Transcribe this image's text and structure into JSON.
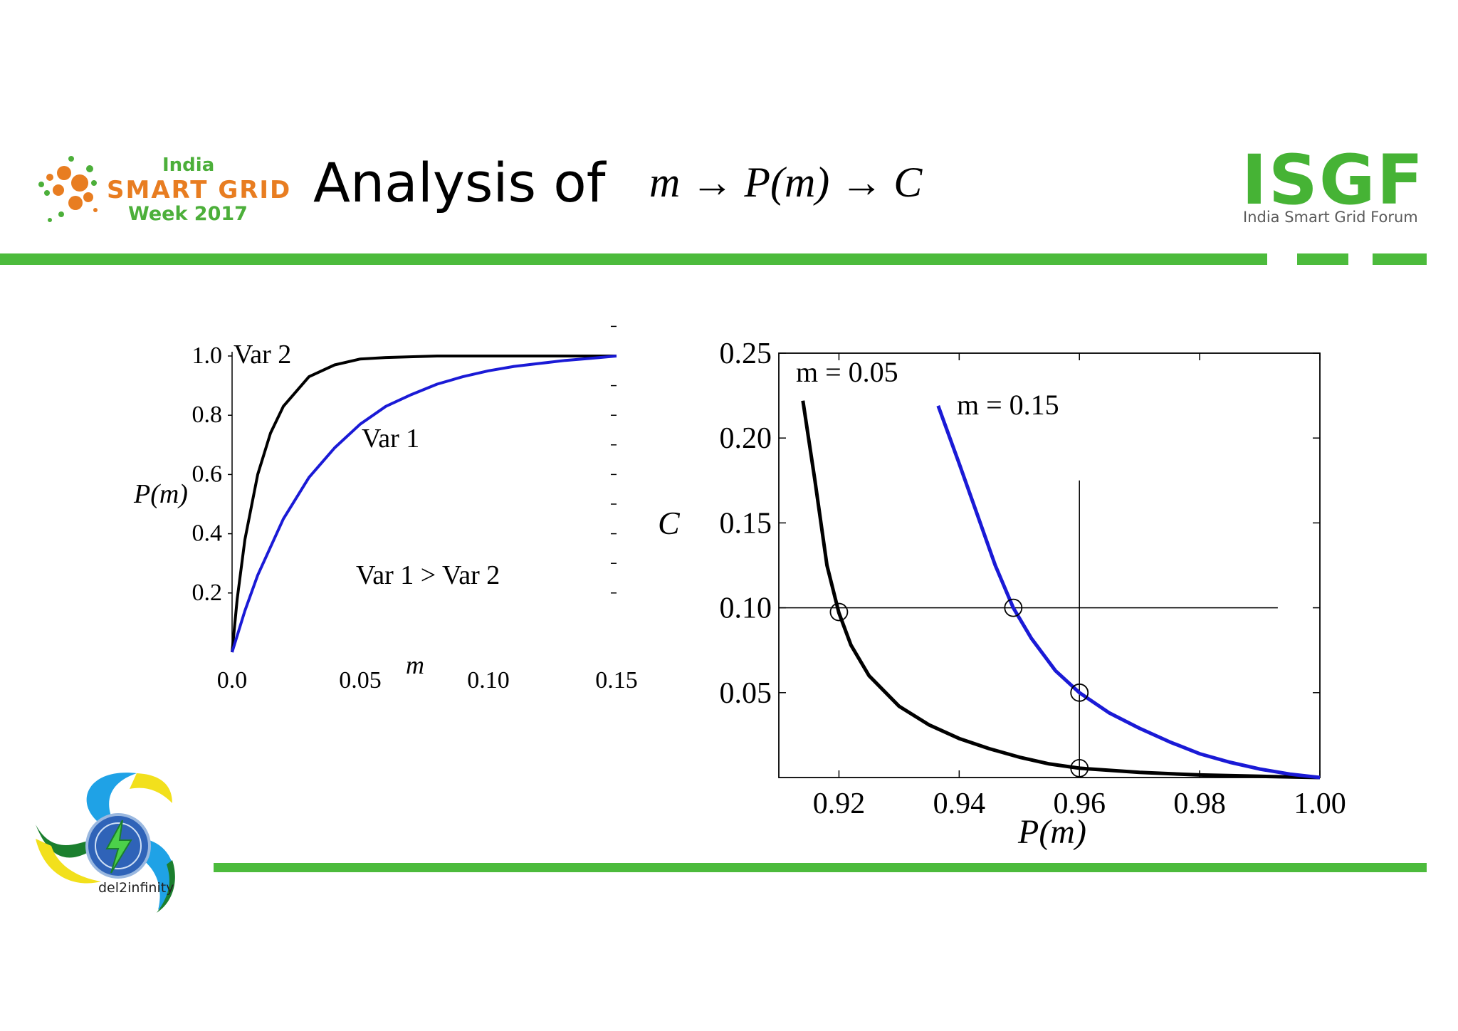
{
  "header": {
    "event_logo": {
      "line1": "India",
      "line2": "SMART GRID",
      "line3": "Week 2017"
    },
    "title": "Analysis of",
    "formula": "m → P(m) → C",
    "org_logo": {
      "name": "ISGF",
      "tagline": "India Smart Grid Forum"
    }
  },
  "footer": {
    "logo_text": "del2infinity"
  },
  "colors": {
    "brand_green": "#4cbb3c",
    "curve_black": "#000000",
    "curve_blue": "#1a1ad6"
  },
  "chart_data": [
    {
      "type": "line",
      "xlabel": "m",
      "ylabel": "P(m)",
      "xlim": [
        0.0,
        0.15
      ],
      "ylim": [
        0.0,
        1.0
      ],
      "xticks": [
        0.0,
        0.05,
        0.1,
        0.15
      ],
      "xtick_labels": [
        "0.0",
        "0.05",
        "0.10",
        "0.15"
      ],
      "yticks": [
        0.2,
        0.4,
        0.6,
        0.8,
        1.0
      ],
      "ytick_labels": [
        "0.2",
        "0.4",
        "0.6",
        "0.8",
        "1.0"
      ],
      "grid": false,
      "series": [
        {
          "name": "Var 2",
          "color": "#000000",
          "x": [
            0,
            0.002,
            0.005,
            0.01,
            0.015,
            0.02,
            0.03,
            0.04,
            0.05,
            0.06,
            0.08,
            0.1,
            0.12,
            0.15
          ],
          "y": [
            0,
            0.18,
            0.38,
            0.6,
            0.74,
            0.83,
            0.93,
            0.97,
            0.99,
            0.995,
            1.0,
            1.0,
            1.0,
            1.0
          ]
        },
        {
          "name": "Var 1",
          "color": "#1a1ad6",
          "x": [
            0,
            0.005,
            0.01,
            0.02,
            0.03,
            0.04,
            0.05,
            0.06,
            0.07,
            0.08,
            0.09,
            0.1,
            0.11,
            0.12,
            0.13,
            0.14,
            0.15
          ],
          "y": [
            0,
            0.14,
            0.26,
            0.45,
            0.59,
            0.69,
            0.77,
            0.83,
            0.87,
            0.905,
            0.93,
            0.95,
            0.965,
            0.975,
            0.985,
            0.992,
            1.0
          ]
        }
      ],
      "annotations": [
        "Var 2",
        "Var 1",
        "Var 1 > Var 2"
      ]
    },
    {
      "type": "line",
      "xlabel": "P(m)",
      "ylabel": "C",
      "xlim": [
        0.91,
        1.0
      ],
      "ylim": [
        0.0,
        0.25
      ],
      "xticks": [
        0.92,
        0.94,
        0.96,
        0.98,
        1.0
      ],
      "xtick_labels": [
        "0.92",
        "0.94",
        "0.96",
        "0.98",
        "1.00"
      ],
      "yticks": [
        0.05,
        0.1,
        0.15,
        0.2,
        0.25
      ],
      "ytick_labels": [
        "0.05",
        "0.10",
        "0.15",
        "0.20",
        "0.25"
      ],
      "grid": false,
      "series": [
        {
          "name": "m = 0.05",
          "color": "#000000",
          "x": [
            0.914,
            0.916,
            0.918,
            0.92,
            0.922,
            0.925,
            0.93,
            0.935,
            0.94,
            0.945,
            0.95,
            0.955,
            0.96,
            0.97,
            0.98,
            0.99,
            1.0
          ],
          "y": [
            0.222,
            0.175,
            0.125,
            0.097,
            0.078,
            0.06,
            0.042,
            0.031,
            0.023,
            0.017,
            0.012,
            0.008,
            0.0055,
            0.003,
            0.0015,
            0.0007,
            0.0
          ]
        },
        {
          "name": "m = 0.15",
          "color": "#1a1ad6",
          "x": [
            0.9365,
            0.94,
            0.943,
            0.946,
            0.949,
            0.952,
            0.956,
            0.96,
            0.965,
            0.97,
            0.975,
            0.98,
            0.985,
            0.99,
            0.995,
            1.0
          ],
          "y": [
            0.219,
            0.185,
            0.155,
            0.125,
            0.1,
            0.082,
            0.063,
            0.05,
            0.038,
            0.029,
            0.021,
            0.014,
            0.009,
            0.005,
            0.002,
            0.0
          ]
        }
      ],
      "reference_lines": {
        "horizontal_C": 0.1,
        "vertical_P": 0.96
      },
      "markers": [
        {
          "x": 0.92,
          "y": 0.0975
        },
        {
          "x": 0.949,
          "y": 0.1
        },
        {
          "x": 0.96,
          "y": 0.05
        },
        {
          "x": 0.96,
          "y": 0.0055
        }
      ],
      "annotations": [
        "m = 0.05",
        "m = 0.15"
      ]
    }
  ]
}
